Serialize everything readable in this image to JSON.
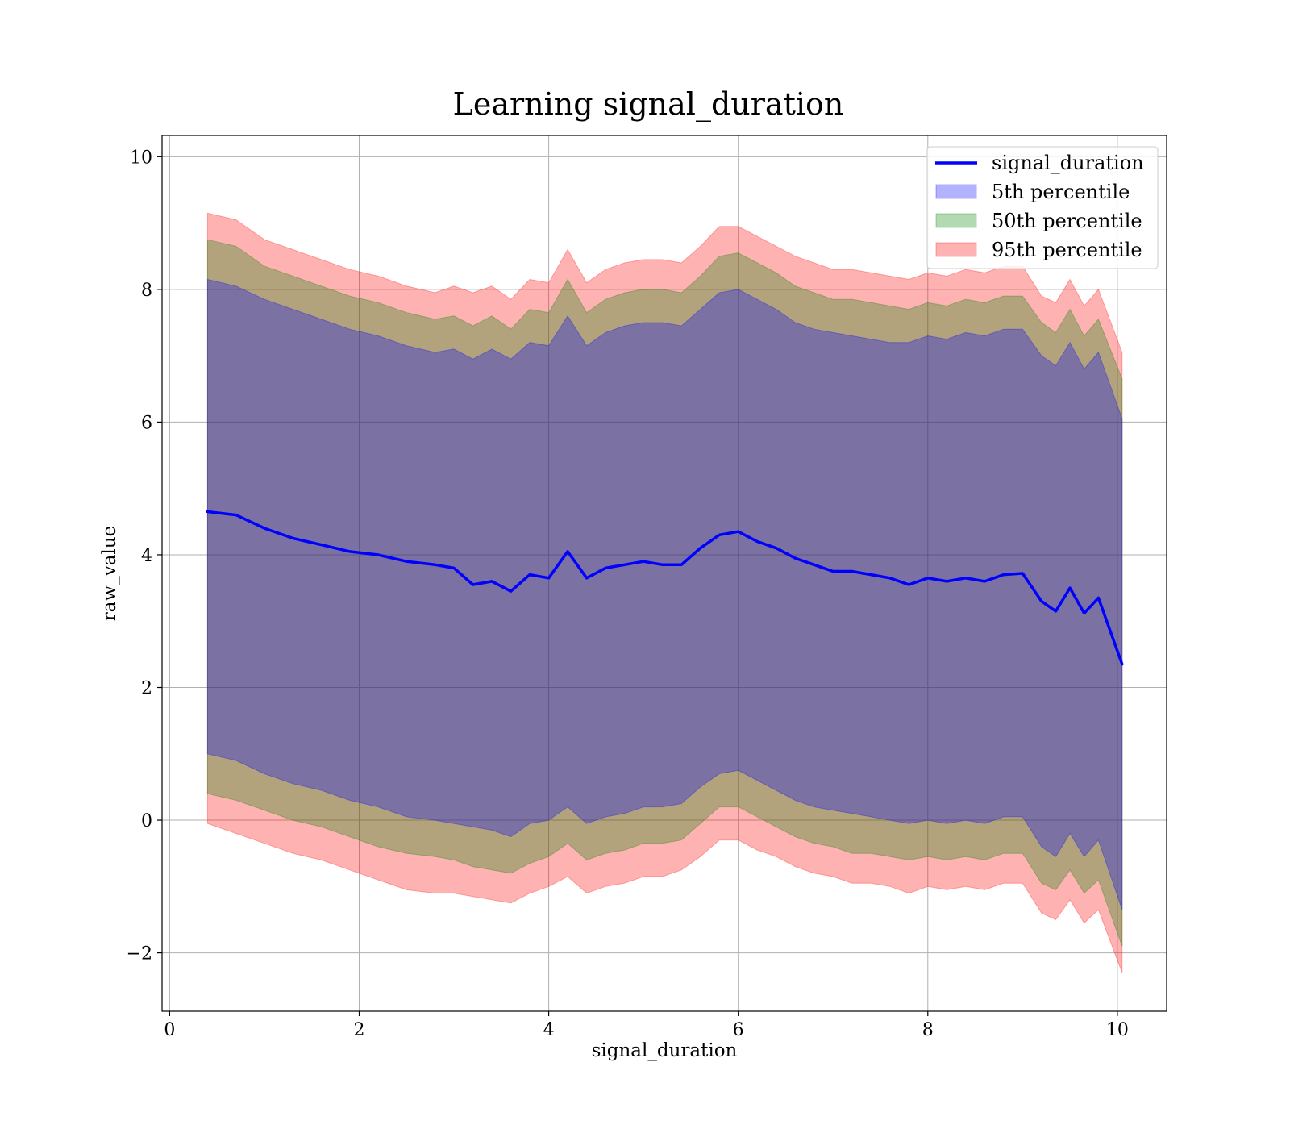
{
  "chart_data": {
    "type": "line",
    "title": "Learning signal_duration",
    "xlabel": "signal_duration",
    "ylabel": "raw_value",
    "xlim": [
      -0.08,
      10.52
    ],
    "ylim": [
      -2.88,
      10.32
    ],
    "x_ticks": [
      0,
      2,
      4,
      6,
      8,
      10
    ],
    "x_tick_labels": [
      "0",
      "2",
      "4",
      "6",
      "8",
      "10"
    ],
    "y_ticks": [
      -2,
      0,
      2,
      4,
      6,
      8,
      10
    ],
    "y_tick_labels": [
      "−2",
      "0",
      "2",
      "4",
      "6",
      "8",
      "10"
    ],
    "grid": true,
    "legend_position": "top-right",
    "x": [
      0.4,
      0.7,
      1.0,
      1.3,
      1.6,
      1.9,
      2.2,
      2.5,
      2.8,
      3.0,
      3.2,
      3.4,
      3.6,
      3.8,
      4.0,
      4.2,
      4.4,
      4.6,
      4.8,
      5.0,
      5.2,
      5.4,
      5.6,
      5.8,
      6.0,
      6.2,
      6.4,
      6.6,
      6.8,
      7.0,
      7.2,
      7.4,
      7.6,
      7.8,
      8.0,
      8.2,
      8.4,
      8.6,
      8.8,
      9.0,
      9.2,
      9.35,
      9.5,
      9.65,
      9.8,
      10.05
    ],
    "series": [
      {
        "name": "signal_duration",
        "color": "#0000ff",
        "values": [
          4.65,
          4.6,
          4.4,
          4.25,
          4.15,
          4.05,
          4.0,
          3.9,
          3.85,
          3.8,
          3.55,
          3.6,
          3.45,
          3.7,
          3.65,
          4.05,
          3.65,
          3.8,
          3.85,
          3.9,
          3.85,
          3.85,
          4.1,
          4.3,
          4.35,
          4.2,
          4.1,
          3.95,
          3.85,
          3.75,
          3.75,
          3.7,
          3.65,
          3.55,
          3.65,
          3.6,
          3.65,
          3.6,
          3.7,
          3.72,
          3.3,
          3.15,
          3.5,
          3.12,
          3.35,
          2.35
        ]
      }
    ],
    "bands": [
      {
        "name": "95th percentile",
        "color": "#ff0000",
        "opacity": 0.3,
        "upper": [
          9.15,
          9.05,
          8.75,
          8.6,
          8.45,
          8.3,
          8.2,
          8.05,
          7.95,
          8.05,
          7.95,
          8.05,
          7.85,
          8.15,
          8.1,
          8.6,
          8.1,
          8.3,
          8.4,
          8.45,
          8.45,
          8.4,
          8.65,
          8.95,
          8.95,
          8.8,
          8.65,
          8.5,
          8.4,
          8.3,
          8.3,
          8.25,
          8.2,
          8.15,
          8.25,
          8.2,
          8.3,
          8.25,
          8.35,
          8.35,
          7.9,
          7.8,
          8.15,
          7.75,
          8.0,
          7.05
        ],
        "lower": [
          -0.05,
          -0.2,
          -0.35,
          -0.5,
          -0.6,
          -0.75,
          -0.9,
          -1.05,
          -1.1,
          -1.1,
          -1.15,
          -1.2,
          -1.25,
          -1.1,
          -1.0,
          -0.85,
          -1.1,
          -1.0,
          -0.95,
          -0.85,
          -0.85,
          -0.75,
          -0.55,
          -0.3,
          -0.3,
          -0.45,
          -0.55,
          -0.7,
          -0.8,
          -0.85,
          -0.95,
          -0.95,
          -1.0,
          -1.1,
          -1.0,
          -1.05,
          -1.0,
          -1.05,
          -0.95,
          -0.95,
          -1.4,
          -1.5,
          -1.2,
          -1.55,
          -1.35,
          -2.3
        ]
      },
      {
        "name": "50th percentile",
        "color": "#008000",
        "opacity": 0.3,
        "upper": [
          8.75,
          8.65,
          8.35,
          8.2,
          8.05,
          7.9,
          7.8,
          7.65,
          7.55,
          7.6,
          7.45,
          7.6,
          7.4,
          7.7,
          7.65,
          8.15,
          7.65,
          7.85,
          7.95,
          8.0,
          8.0,
          7.95,
          8.2,
          8.5,
          8.55,
          8.4,
          8.25,
          8.05,
          7.95,
          7.85,
          7.85,
          7.8,
          7.75,
          7.7,
          7.8,
          7.75,
          7.85,
          7.8,
          7.9,
          7.9,
          7.5,
          7.35,
          7.7,
          7.3,
          7.55,
          6.65
        ],
        "lower": [
          0.4,
          0.3,
          0.15,
          0.0,
          -0.1,
          -0.25,
          -0.4,
          -0.5,
          -0.55,
          -0.6,
          -0.7,
          -0.75,
          -0.8,
          -0.65,
          -0.55,
          -0.35,
          -0.6,
          -0.5,
          -0.45,
          -0.35,
          -0.35,
          -0.3,
          -0.05,
          0.2,
          0.2,
          0.05,
          -0.1,
          -0.25,
          -0.35,
          -0.4,
          -0.5,
          -0.5,
          -0.55,
          -0.6,
          -0.55,
          -0.6,
          -0.55,
          -0.6,
          -0.5,
          -0.5,
          -0.95,
          -1.05,
          -0.75,
          -1.1,
          -0.9,
          -1.9
        ]
      },
      {
        "name": "5th percentile",
        "color": "#0000ff",
        "opacity": 0.3,
        "upper": [
          8.15,
          8.05,
          7.85,
          7.7,
          7.55,
          7.4,
          7.3,
          7.15,
          7.05,
          7.1,
          6.95,
          7.1,
          6.95,
          7.2,
          7.15,
          7.6,
          7.15,
          7.35,
          7.45,
          7.5,
          7.5,
          7.45,
          7.7,
          7.95,
          8.0,
          7.85,
          7.7,
          7.5,
          7.4,
          7.35,
          7.3,
          7.25,
          7.2,
          7.2,
          7.3,
          7.25,
          7.35,
          7.3,
          7.4,
          7.4,
          7.0,
          6.85,
          7.2,
          6.8,
          7.05,
          6.05
        ],
        "lower": [
          1.0,
          0.9,
          0.7,
          0.55,
          0.45,
          0.3,
          0.2,
          0.05,
          0.0,
          -0.05,
          -0.1,
          -0.15,
          -0.25,
          -0.05,
          0.0,
          0.2,
          -0.05,
          0.05,
          0.1,
          0.2,
          0.2,
          0.25,
          0.5,
          0.7,
          0.75,
          0.6,
          0.45,
          0.3,
          0.2,
          0.15,
          0.1,
          0.05,
          0.0,
          -0.05,
          0.0,
          -0.05,
          0.0,
          -0.05,
          0.05,
          0.05,
          -0.4,
          -0.55,
          -0.2,
          -0.55,
          -0.3,
          -1.35
        ]
      }
    ],
    "legend": [
      {
        "label": "signal_duration",
        "kind": "line",
        "color": "#0000ff"
      },
      {
        "label": "5th percentile",
        "kind": "patch",
        "color": "#0000ff"
      },
      {
        "label": "50th percentile",
        "kind": "patch",
        "color": "#008000"
      },
      {
        "label": "95th percentile",
        "kind": "patch",
        "color": "#ff0000"
      }
    ]
  }
}
